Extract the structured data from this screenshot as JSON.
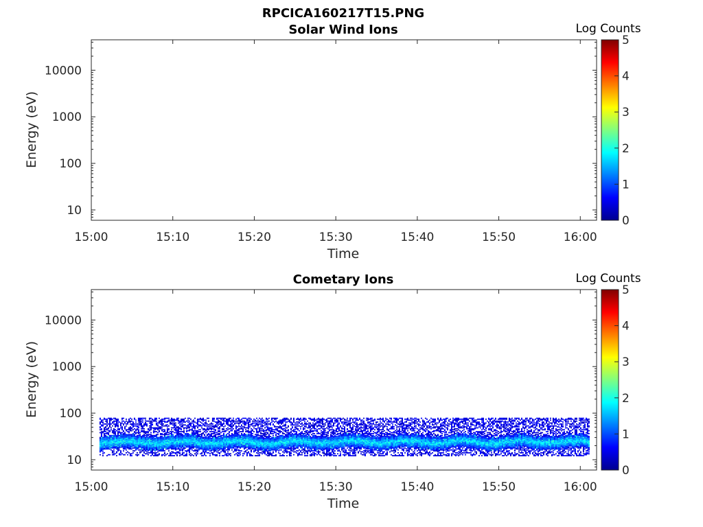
{
  "figure_title": "RPCICA160217T15.PNG",
  "chart_data": [
    {
      "type": "heatmap",
      "title": "Solar Wind Ions",
      "xlabel": "Time",
      "ylabel": "Energy (eV)",
      "x_ticks": [
        "15:00",
        "15:10",
        "15:20",
        "15:30",
        "15:40",
        "15:50",
        "16:00"
      ],
      "xlim": [
        "15:00",
        "16:02"
      ],
      "y_ticks": [
        10,
        100,
        1000,
        10000
      ],
      "ylim": [
        6,
        45000
      ],
      "yscale": "log",
      "colorbar": {
        "label": "Log Counts",
        "range": [
          0,
          5
        ],
        "ticks": [
          0,
          1,
          2,
          3,
          4,
          5
        ],
        "colormap": "jet"
      },
      "data": "empty"
    },
    {
      "type": "heatmap",
      "title": "Cometary Ions",
      "xlabel": "Time",
      "ylabel": "Energy (eV)",
      "x_ticks": [
        "15:00",
        "15:10",
        "15:20",
        "15:30",
        "15:40",
        "15:50",
        "16:00"
      ],
      "xlim": [
        "15:00",
        "16:02"
      ],
      "y_ticks": [
        10,
        100,
        1000,
        10000
      ],
      "ylim": [
        6,
        45000
      ],
      "yscale": "log",
      "colorbar": {
        "label": "Log Counts",
        "range": [
          0,
          5
        ],
        "ticks": [
          0,
          1,
          2,
          3,
          4,
          5
        ],
        "colormap": "jet"
      },
      "data": {
        "time_range": [
          "15:01",
          "16:01"
        ],
        "energy_range_eV": [
          12,
          80
        ],
        "peak_energy_eV": [
          18,
          32
        ],
        "peak_log_counts": 1.8,
        "edge_log_counts": 0.3
      }
    }
  ]
}
